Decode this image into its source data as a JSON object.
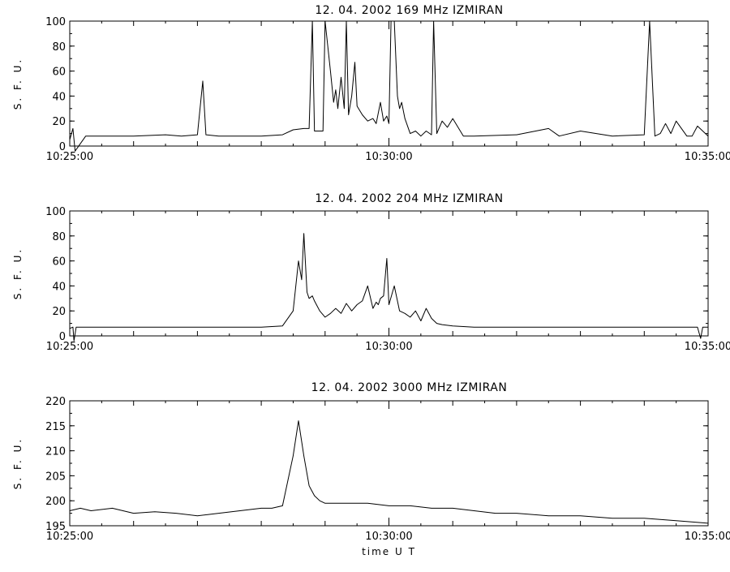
{
  "chart_data": [
    {
      "type": "line",
      "title": "12.  04.  2002    169 MHz    IZMIRAN",
      "ylabel": "S. F. U.",
      "xlabel": "",
      "xlim": [
        "10:25:00",
        "10:35:00"
      ],
      "ylim": [
        0,
        100
      ],
      "yticks": [
        0,
        20,
        40,
        60,
        80,
        100
      ],
      "xtick_labels": [
        "10:25:00",
        "10:30:00",
        "10:35:00"
      ],
      "grid": false,
      "series": [
        {
          "x": [
            "10:25:00",
            "10:25:03",
            "10:25:05",
            "10:25:15",
            "10:26:00",
            "10:26:30",
            "10:26:45",
            "10:27:00",
            "10:27:05",
            "10:27:08",
            "10:27:20",
            "10:28:00",
            "10:28:20",
            "10:28:30",
            "10:28:40",
            "10:28:45",
            "10:28:48",
            "10:28:50",
            "10:28:58",
            "10:29:00",
            "10:29:05",
            "10:29:08",
            "10:29:10",
            "10:29:12",
            "10:29:15",
            "10:29:18",
            "10:29:20",
            "10:29:22",
            "10:29:25",
            "10:29:28",
            "10:29:30",
            "10:29:35",
            "10:29:40",
            "10:29:45",
            "10:29:48",
            "10:29:52",
            "10:29:55",
            "10:29:58",
            "10:30:00",
            "10:30:02",
            "10:30:05",
            "10:30:08",
            "10:30:10",
            "10:30:12",
            "10:30:15",
            "10:30:20",
            "10:30:25",
            "10:30:30",
            "10:30:35",
            "10:30:40",
            "10:30:42",
            "10:30:45",
            "10:30:50",
            "10:30:55",
            "10:31:00",
            "10:31:10",
            "10:31:20",
            "10:32:00",
            "10:32:30",
            "10:32:40",
            "10:33:00",
            "10:33:30",
            "10:34:00",
            "10:34:05",
            "10:34:10",
            "10:34:15",
            "10:34:20",
            "10:34:25",
            "10:34:30",
            "10:34:40",
            "10:34:45",
            "10:34:50",
            "10:34:55",
            "10:35:00"
          ],
          "y": [
            5,
            14,
            -4,
            8,
            8,
            9,
            8,
            9,
            52,
            9,
            8,
            8,
            9,
            13,
            14,
            14,
            100,
            12,
            12,
            100,
            60,
            35,
            45,
            30,
            55,
            30,
            100,
            25,
            40,
            67,
            32,
            25,
            20,
            22,
            18,
            35,
            20,
            24,
            18,
            100,
            100,
            40,
            30,
            35,
            22,
            10,
            12,
            8,
            12,
            9,
            100,
            10,
            20,
            15,
            22,
            8,
            8,
            9,
            14,
            8,
            12,
            8,
            9,
            100,
            8,
            10,
            18,
            10,
            20,
            8,
            8,
            16,
            12,
            8
          ]
        }
      ]
    },
    {
      "type": "line",
      "title": "12.  04.  2002    204 MHz    IZMIRAN",
      "ylabel": "S. F. U.",
      "xlabel": "",
      "xlim": [
        "10:25:00",
        "10:35:00"
      ],
      "ylim": [
        0,
        100
      ],
      "yticks": [
        0,
        20,
        40,
        60,
        80,
        100
      ],
      "xtick_labels": [
        "10:25:00",
        "10:30:00",
        "10:35:00"
      ],
      "grid": false,
      "series": [
        {
          "x": [
            "10:25:00",
            "10:25:03",
            "10:25:04",
            "10:25:06",
            "10:26:00",
            "10:27:00",
            "10:28:00",
            "10:28:20",
            "10:28:30",
            "10:28:35",
            "10:28:38",
            "10:28:40",
            "10:28:43",
            "10:28:45",
            "10:28:48",
            "10:28:50",
            "10:28:55",
            "10:29:00",
            "10:29:05",
            "10:29:10",
            "10:29:15",
            "10:29:20",
            "10:29:25",
            "10:29:30",
            "10:29:35",
            "10:29:40",
            "10:29:45",
            "10:29:48",
            "10:29:50",
            "10:29:52",
            "10:29:55",
            "10:29:58",
            "10:30:00",
            "10:30:05",
            "10:30:10",
            "10:30:15",
            "10:30:20",
            "10:30:25",
            "10:30:30",
            "10:30:35",
            "10:30:40",
            "10:30:45",
            "10:30:50",
            "10:31:00",
            "10:31:20",
            "10:32:00",
            "10:33:00",
            "10:34:00",
            "10:34:50",
            "10:34:53",
            "10:34:55",
            "10:35:00"
          ],
          "y": [
            6,
            7,
            -4,
            7,
            7,
            7,
            7,
            8,
            20,
            60,
            45,
            82,
            35,
            30,
            32,
            28,
            20,
            15,
            18,
            22,
            18,
            26,
            20,
            25,
            28,
            40,
            22,
            27,
            25,
            30,
            32,
            62,
            25,
            40,
            20,
            18,
            15,
            20,
            12,
            22,
            14,
            10,
            9,
            8,
            7,
            7,
            7,
            7,
            7,
            -2,
            7,
            7
          ]
        }
      ]
    },
    {
      "type": "line",
      "title": "12.  04.  2002    3000 MHz    IZMIRAN",
      "ylabel": "S. F. U.",
      "xlabel": "time   U T",
      "xlim": [
        "10:25:00",
        "10:35:00"
      ],
      "ylim": [
        195,
        220
      ],
      "yticks": [
        195,
        200,
        205,
        210,
        215,
        220
      ],
      "xtick_labels": [
        "10:25:00",
        "10:30:00",
        "10:35:00"
      ],
      "grid": false,
      "series": [
        {
          "x": [
            "10:25:00",
            "10:25:10",
            "10:25:20",
            "10:25:40",
            "10:26:00",
            "10:26:20",
            "10:26:40",
            "10:27:00",
            "10:27:20",
            "10:27:40",
            "10:28:00",
            "10:28:10",
            "10:28:20",
            "10:28:30",
            "10:28:35",
            "10:28:40",
            "10:28:45",
            "10:28:50",
            "10:28:55",
            "10:29:00",
            "10:29:20",
            "10:29:40",
            "10:30:00",
            "10:30:20",
            "10:30:40",
            "10:31:00",
            "10:31:20",
            "10:31:40",
            "10:32:00",
            "10:32:30",
            "10:33:00",
            "10:33:30",
            "10:34:00",
            "10:34:30",
            "10:35:00"
          ],
          "y": [
            198,
            198.5,
            198,
            198.5,
            197.5,
            197.8,
            197.5,
            197,
            197.5,
            198,
            198.5,
            198.5,
            199,
            209,
            216,
            209,
            203,
            201,
            200,
            199.5,
            199.5,
            199.5,
            199,
            199,
            198.5,
            198.5,
            198,
            197.5,
            197.5,
            197,
            197,
            196.5,
            196.5,
            196,
            195.5
          ]
        }
      ]
    }
  ]
}
